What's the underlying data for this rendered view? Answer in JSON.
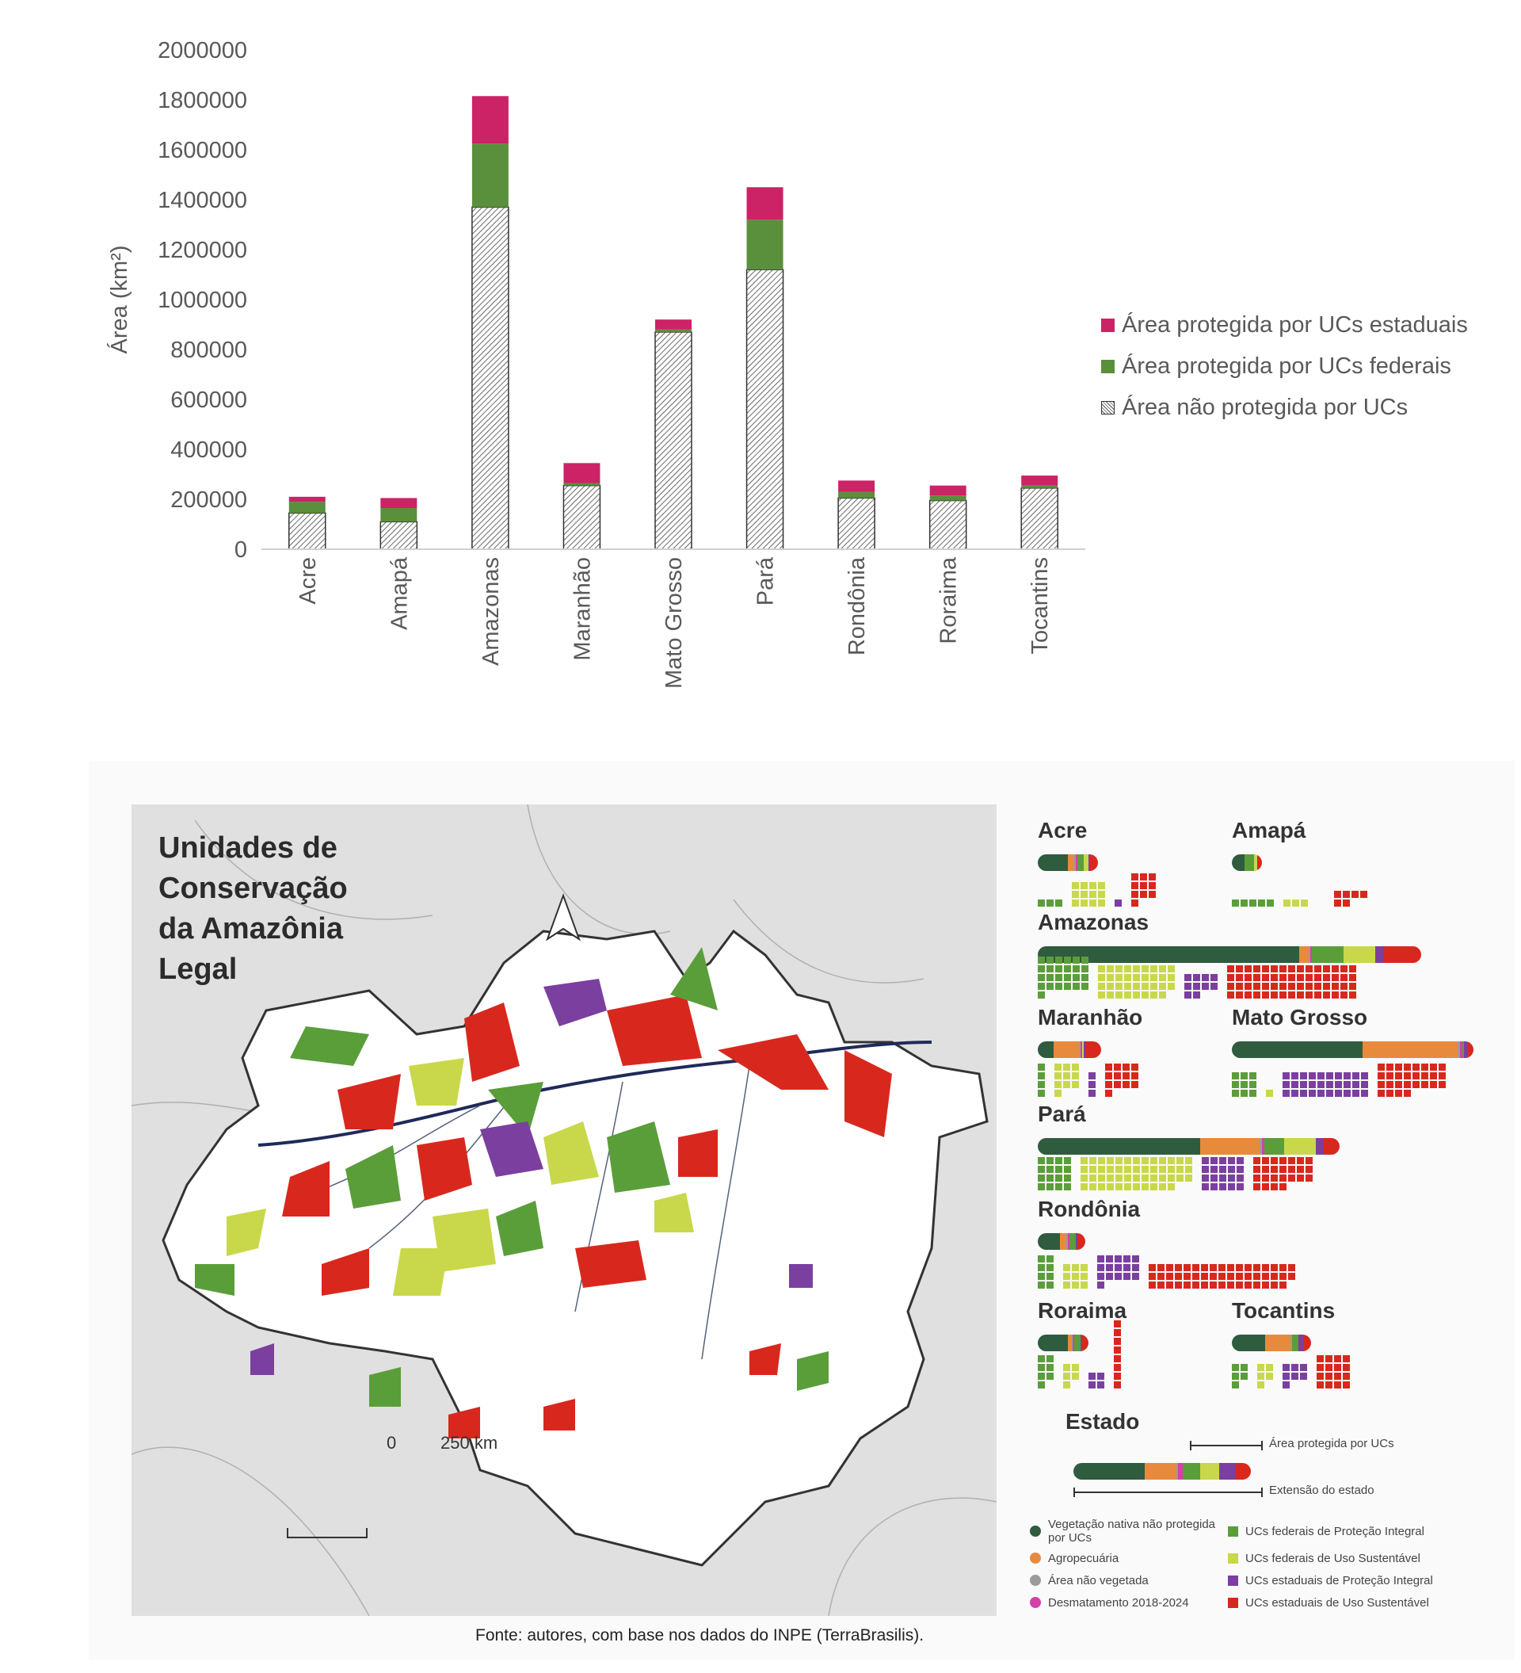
{
  "chart_data": {
    "type": "bar",
    "stacked": true,
    "categories": [
      "Acre",
      "Amapá",
      "Amazonas",
      "Maranhão",
      "Mato Grosso",
      "Pará",
      "Rondônia",
      "Roraima",
      "Tocantins"
    ],
    "series": [
      {
        "name": "Área não protegida por UCs",
        "color": "#ffffff",
        "pattern": "hatch",
        "values": [
          145000,
          110000,
          1370000,
          255000,
          870000,
          1120000,
          205000,
          195000,
          245000
        ]
      },
      {
        "name": "Área protegida por UCs federais",
        "color": "#5a8f3c",
        "values": [
          45000,
          55000,
          255000,
          10000,
          10000,
          200000,
          25000,
          20000,
          10000
        ]
      },
      {
        "name": "Área protegida por UCs estaduais",
        "color": "#cc2266",
        "values": [
          20000,
          40000,
          190000,
          80000,
          40000,
          130000,
          45000,
          40000,
          40000
        ]
      }
    ],
    "ylabel": "Área (km²)",
    "ylim": [
      0,
      2000000
    ],
    "yticks": [
      "2000000",
      "1800000",
      "1600000",
      "1400000",
      "1200000",
      "1000000",
      "800000",
      "600000",
      "400000",
      "200000",
      "0"
    ],
    "legend": [
      "Área protegida por UCs estaduais",
      "Área protegida por UCs federais",
      "Área não protegida por UCs"
    ],
    "legend_position": "right"
  },
  "map": {
    "title_lines": [
      "Unidades de",
      "Conservação",
      "da Amazônia",
      "Legal"
    ],
    "scale_start": "0",
    "scale_end": "250 km"
  },
  "states": [
    {
      "name": "Acre",
      "bar": [
        38,
        8,
        2,
        2,
        8,
        6,
        2,
        10
      ],
      "waffle": [
        {
          "color": "#5a9e3a",
          "count": 3,
          "cols": 3
        },
        {
          "color": "#c8d84a",
          "count": 12,
          "cols": 4
        },
        {
          "color": "#7b3fa0",
          "count": 1,
          "cols": 1
        },
        {
          "color": "#d8281e",
          "count": 10,
          "cols": 3
        }
      ]
    },
    {
      "name": "Amapá",
      "bar": [
        16,
        0,
        0,
        0,
        12,
        4,
        0,
        6
      ],
      "waffle": [
        {
          "color": "#5a9e3a",
          "count": 5,
          "cols": 5
        },
        {
          "color": "#c8d84a",
          "count": 3,
          "cols": 3
        },
        {
          "color": "#7b3fa0",
          "count": 0,
          "cols": 1
        },
        {
          "color": "#d8281e",
          "count": 6,
          "cols": 4
        }
      ]
    },
    {
      "name": "Amazonas",
      "bar": [
        330,
        12,
        2,
        2,
        40,
        40,
        10,
        48
      ],
      "waffle": [
        {
          "color": "#5a9e3a",
          "count": 25,
          "cols": 6
        },
        {
          "color": "#c8d84a",
          "count": 35,
          "cols": 9
        },
        {
          "color": "#7b3fa0",
          "count": 10,
          "cols": 4
        },
        {
          "color": "#d8281e",
          "count": 60,
          "cols": 15
        }
      ]
    },
    {
      "name": "Maranhão",
      "bar": [
        20,
        32,
        2,
        2,
        0,
        2,
        2,
        20
      ],
      "waffle": [
        {
          "color": "#5a9e3a",
          "count": 4,
          "cols": 1
        },
        {
          "color": "#c8d84a",
          "count": 10,
          "cols": 3
        },
        {
          "color": "#7b3fa0",
          "count": 3,
          "cols": 1
        },
        {
          "color": "#d8281e",
          "count": 13,
          "cols": 4
        }
      ]
    },
    {
      "name": "Mato Grosso",
      "bar": [
        165,
        120,
        3,
        3,
        2,
        0,
        4,
        8
      ],
      "waffle": [
        {
          "color": "#5a9e3a",
          "count": 9,
          "cols": 3
        },
        {
          "color": "#c8d84a",
          "count": 1,
          "cols": 1
        },
        {
          "color": "#7b3fa0",
          "count": 30,
          "cols": 10
        },
        {
          "color": "#d8281e",
          "count": 28,
          "cols": 8
        }
      ]
    },
    {
      "name": "Pará",
      "bar": [
        205,
        75,
        3,
        3,
        25,
        40,
        10,
        20
      ],
      "waffle": [
        {
          "color": "#5a9e3a",
          "count": 16,
          "cols": 4
        },
        {
          "color": "#c8d84a",
          "count": 50,
          "cols": 13
        },
        {
          "color": "#7b3fa0",
          "count": 20,
          "cols": 5
        },
        {
          "color": "#d8281e",
          "count": 25,
          "cols": 7
        }
      ]
    },
    {
      "name": "Rondônia",
      "bar": [
        28,
        8,
        2,
        2,
        8,
        0,
        2,
        10
      ],
      "waffle": [
        {
          "color": "#5a9e3a",
          "count": 8,
          "cols": 2
        },
        {
          "color": "#c8d84a",
          "count": 9,
          "cols": 3
        },
        {
          "color": "#7b3fa0",
          "count": 16,
          "cols": 5
        },
        {
          "color": "#d8281e",
          "count": 50,
          "cols": 17
        }
      ]
    },
    {
      "name": "Roraima",
      "bar": [
        38,
        4,
        2,
        2,
        8,
        0,
        2,
        8
      ],
      "waffle": [
        {
          "color": "#5a9e3a",
          "count": 7,
          "cols": 2
        },
        {
          "color": "#c8d84a",
          "count": 5,
          "cols": 2
        },
        {
          "color": "#7b3fa0",
          "count": 4,
          "cols": 2
        },
        {
          "color": "#d8281e",
          "count": 8,
          "cols": 1
        }
      ]
    },
    {
      "name": "Tocantins",
      "bar": [
        42,
        32,
        2,
        0,
        8,
        0,
        6,
        10
      ],
      "waffle": [
        {
          "color": "#5a9e3a",
          "count": 5,
          "cols": 2
        },
        {
          "color": "#c8d84a",
          "count": 5,
          "cols": 2
        },
        {
          "color": "#7b3fa0",
          "count": 7,
          "cols": 3
        },
        {
          "color": "#d8281e",
          "count": 16,
          "cols": 4
        }
      ]
    }
  ],
  "estado_legend": {
    "title": "Estado",
    "protected_label": "Área protegida por UCs",
    "extent_label": "Extensão do estado",
    "bar": [
      90,
      40,
      2,
      6,
      22,
      24,
      20,
      20
    ]
  },
  "category_colors": [
    "#2f5b3f",
    "#e88a3c",
    "#9b9b9b",
    "#d63fa8",
    "#5a9e3a",
    "#c8d84a",
    "#7b3fa0",
    "#d8281e"
  ],
  "category_legend": [
    {
      "label": "Vegetação nativa não protegida por UCs",
      "color": "#2f5b3f",
      "shape": "dot"
    },
    {
      "label": "UCs federais de Proteção Integral",
      "color": "#5a9e3a",
      "shape": "square"
    },
    {
      "label": "Agropecuária",
      "color": "#e88a3c",
      "shape": "dot"
    },
    {
      "label": "UCs federais de Uso Sustentável",
      "color": "#c8d84a",
      "shape": "square"
    },
    {
      "label": "Área não vegetada",
      "color": "#9b9b9b",
      "shape": "dot"
    },
    {
      "label": "UCs estaduais de Proteção Integral",
      "color": "#7b3fa0",
      "shape": "square"
    },
    {
      "label": "Desmatamento 2018-2024",
      "color": "#d63fa8",
      "shape": "dot"
    },
    {
      "label": "UCs estaduais de Uso Sustentável",
      "color": "#d8281e",
      "shape": "square"
    }
  ],
  "source": "Fonte: autores, com base nos dados do INPE (TerraBrasilis)."
}
